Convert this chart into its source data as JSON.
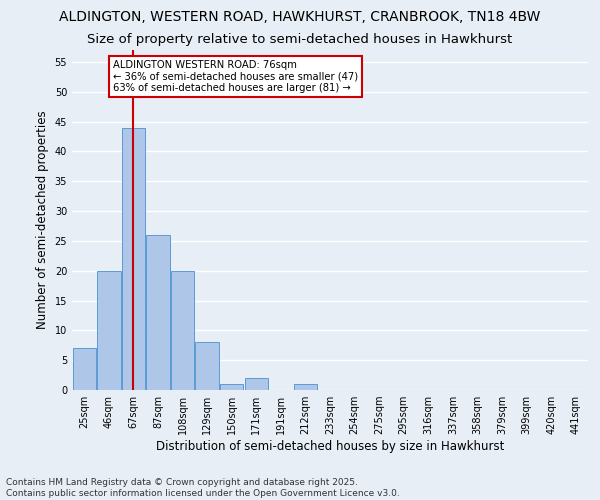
{
  "title1": "ALDINGTON, WESTERN ROAD, HAWKHURST, CRANBROOK, TN18 4BW",
  "title2": "Size of property relative to semi-detached houses in Hawkhurst",
  "xlabel": "Distribution of semi-detached houses by size in Hawkhurst",
  "ylabel": "Number of semi-detached properties",
  "footnote1": "Contains HM Land Registry data © Crown copyright and database right 2025.",
  "footnote2": "Contains public sector information licensed under the Open Government Licence v3.0.",
  "bar_labels": [
    "25sqm",
    "46sqm",
    "67sqm",
    "87sqm",
    "108sqm",
    "129sqm",
    "150sqm",
    "171sqm",
    "191sqm",
    "212sqm",
    "233sqm",
    "254sqm",
    "275sqm",
    "295sqm",
    "316sqm",
    "337sqm",
    "358sqm",
    "379sqm",
    "399sqm",
    "420sqm",
    "441sqm"
  ],
  "bar_values": [
    7,
    20,
    44,
    26,
    20,
    8,
    1,
    2,
    0,
    1,
    0,
    0,
    0,
    0,
    0,
    0,
    0,
    0,
    0,
    0,
    0
  ],
  "bar_color": "#aec6e8",
  "bar_edge_color": "#5b9bd5",
  "vline_x": 2,
  "vline_color": "#cc0000",
  "annotation_title": "ALDINGTON WESTERN ROAD: 76sqm",
  "annotation_line1": "← 36% of semi-detached houses are smaller (47)",
  "annotation_line2": "63% of semi-detached houses are larger (81) →",
  "annotation_box_color": "#ffffff",
  "annotation_box_edge": "#cc0000",
  "ylim": [
    0,
    57
  ],
  "yticks": [
    0,
    5,
    10,
    15,
    20,
    25,
    30,
    35,
    40,
    45,
    50,
    55
  ],
  "bg_color": "#e8eef6",
  "plot_bg_color": "#e8eef6",
  "grid_color": "#ffffff",
  "title_fontsize": 10,
  "subtitle_fontsize": 9.5,
  "tick_fontsize": 7,
  "ylabel_fontsize": 8.5,
  "xlabel_fontsize": 8.5,
  "footnote_fontsize": 6.5
}
